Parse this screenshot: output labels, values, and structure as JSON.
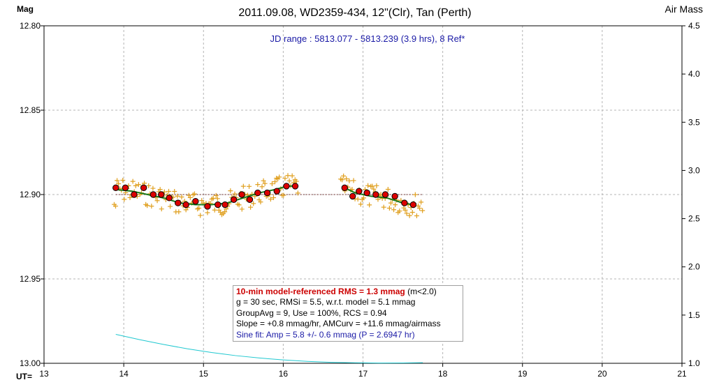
{
  "title": "2011.09.08, WD2359-434, 12\"(Clr), Tan (Perth)",
  "left_axis_title": "Mag",
  "right_axis_title": "Air Mass",
  "x_axis_prefix": "UT=",
  "jd_range": "JD range : 5813.077 - 5813.239 (3.9 hrs), 8 Ref*",
  "info": {
    "line1_bold": "10-min model-referenced RMS = 1.3 mmag",
    "line1_tail": " (m<2.0)",
    "line2": "g = 30 sec, RMSi = 5.5, w.r.t. model = 5.1 mmag",
    "line3": "GroupAvg  = 9, Use = 100%, RCS = 0.94",
    "line4": "Slope = +0.8 mmag/hr, AMCurv  = +11.6 mmag/airmass",
    "line5": "Sine fit: Amp = 5.8 +/- 0.6 mmag (P = 2.6947  hr)"
  },
  "colors": {
    "raw_points": "#e0a020",
    "group_avg_fill": "#dd0000",
    "model_line": "#1a7a1a",
    "airmass_line": "#20c8d0",
    "jd_text": "#1a1aa6",
    "rms_text": "#cc0000"
  },
  "chart_data": {
    "type": "scatter",
    "title": "2011.09.08, WD2359-434, 12\"(Clr), Tan (Perth)",
    "xlabel": "UT=",
    "ylabel": "Mag",
    "y2label": "Air Mass",
    "xlim": [
      13,
      21
    ],
    "ylim": [
      13.0,
      12.8
    ],
    "y2lim": [
      1.0,
      4.5
    ],
    "x_ticks": [
      "13",
      "14",
      "15",
      "16",
      "17",
      "18",
      "19",
      "20",
      "21"
    ],
    "y_ticks": [
      "12.80",
      "12.85",
      "12.90",
      "12.95",
      "13.00"
    ],
    "y2_ticks": [
      "1.0",
      "1.5",
      "2.0",
      "2.5",
      "3.0",
      "3.5",
      "4.0",
      "4.5"
    ],
    "grid": true,
    "reference_level": 12.9,
    "series": [
      {
        "kind": "group_average",
        "x": [
          13.9,
          14.02,
          14.13,
          14.25,
          14.37,
          14.47,
          14.57,
          14.68,
          14.78,
          14.9,
          15.05,
          15.18,
          15.27,
          15.38,
          15.48,
          15.58,
          15.68,
          15.8,
          15.92,
          16.04,
          16.15,
          16.77,
          16.87,
          16.95,
          17.05,
          17.16,
          17.28,
          17.4,
          17.52,
          17.63
        ],
        "y": [
          12.896,
          12.896,
          12.9,
          12.896,
          12.9,
          12.9,
          12.902,
          12.905,
          12.906,
          12.904,
          12.907,
          12.906,
          12.906,
          12.903,
          12.9,
          12.903,
          12.899,
          12.899,
          12.898,
          12.895,
          12.895,
          12.896,
          12.901,
          12.898,
          12.899,
          12.9,
          12.9,
          12.901,
          12.905,
          12.906
        ]
      },
      {
        "kind": "model",
        "x": [
          13.9,
          14.1,
          14.3,
          14.5,
          14.7,
          14.9,
          15.1,
          15.3,
          15.5,
          15.7,
          15.9,
          16.05,
          16.15,
          16.77,
          16.9,
          17.1,
          17.3,
          17.5,
          17.63
        ],
        "y": [
          12.897,
          12.898,
          12.9,
          12.902,
          12.905,
          12.906,
          12.906,
          12.905,
          12.902,
          12.899,
          12.897,
          12.895,
          12.895,
          12.896,
          12.899,
          12.901,
          12.902,
          12.905,
          12.906
        ]
      },
      {
        "kind": "airmass",
        "x": [
          13.9,
          14.2,
          14.5,
          14.8,
          15.1,
          15.4,
          15.7,
          16.0,
          16.3,
          16.6,
          16.9,
          17.2,
          17.5,
          17.75
        ],
        "y": [
          1.3,
          1.245,
          1.195,
          1.15,
          1.112,
          1.08,
          1.055,
          1.035,
          1.02,
          1.01,
          1.005,
          1.003,
          1.004,
          1.006
        ]
      }
    ]
  }
}
